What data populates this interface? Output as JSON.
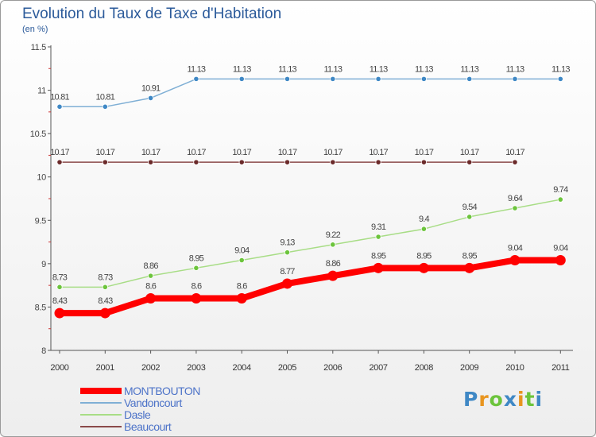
{
  "chart_data": {
    "type": "line",
    "title": "Evolution du Taux de Taxe d'Habitation",
    "subtitle": "(en %)",
    "xlabel": "",
    "ylabel": "",
    "x": [
      "2000",
      "2001",
      "2002",
      "2003",
      "2004",
      "2005",
      "2006",
      "2007",
      "2008",
      "2009",
      "2010",
      "2011"
    ],
    "ylim": [
      8,
      11.5
    ],
    "yticks": [
      {
        "v": 8,
        "label": "8"
      },
      {
        "v": 8.5,
        "label": "8.5"
      },
      {
        "v": 9,
        "label": "9"
      },
      {
        "v": 9.5,
        "label": "9.5"
      },
      {
        "v": 10,
        "label": "10"
      },
      {
        "v": 10.5,
        "label": "10.5"
      },
      {
        "v": 11,
        "label": "11"
      },
      {
        "v": 11.5,
        "label": "11.5"
      }
    ],
    "legend_position": "bottom-left",
    "series": [
      {
        "name": "MONTBOUTON",
        "color": "#ff0000",
        "marker_color": "#ff0000",
        "width": "thick",
        "values": [
          8.43,
          8.43,
          8.6,
          8.6,
          8.6,
          8.77,
          8.86,
          8.95,
          8.95,
          8.95,
          9.04,
          9.04
        ],
        "labels": [
          "8.43",
          "8.43",
          "8.6",
          "8.6",
          "8.6",
          "8.77",
          "8.86",
          "8.95",
          "8.95",
          "8.95",
          "9.04",
          "9.04"
        ]
      },
      {
        "name": "Vandoncourt",
        "color": "#7fafd5",
        "marker_color": "#3f88c5",
        "width": "thin",
        "values": [
          10.81,
          10.81,
          10.91,
          11.13,
          11.13,
          11.13,
          11.13,
          11.13,
          11.13,
          11.13,
          11.13,
          11.13
        ],
        "labels": [
          "10.81",
          "10.81",
          "10.91",
          "11.13",
          "11.13",
          "11.13",
          "11.13",
          "11.13",
          "11.13",
          "11.13",
          "11.13",
          "11.13"
        ]
      },
      {
        "name": "Dasle",
        "color": "#a8dd86",
        "marker_color": "#6cc43c",
        "width": "thin",
        "values": [
          8.73,
          8.73,
          8.86,
          8.95,
          9.04,
          9.13,
          9.22,
          9.31,
          9.4,
          9.54,
          9.64,
          9.74
        ],
        "labels": [
          "8.73",
          "8.73",
          "8.86",
          "8.95",
          "9.04",
          "9.13",
          "9.22",
          "9.31",
          "9.4",
          "9.54",
          "9.64",
          "9.74"
        ]
      },
      {
        "name": "Beaucourt",
        "color": "#8a4a4a",
        "marker_color": "#6b2a2a",
        "width": "thin",
        "values": [
          10.17,
          10.17,
          10.17,
          10.17,
          10.17,
          10.17,
          10.17,
          10.17,
          10.17,
          10.17,
          10.17,
          null
        ],
        "labels": [
          "10.17",
          "10.17",
          "10.17",
          "10.17",
          "10.17",
          "10.17",
          "10.17",
          "10.17",
          "10.17",
          "10.17",
          "10.17",
          ""
        ]
      }
    ]
  },
  "logo": {
    "letters": [
      "P",
      "r",
      "o",
      "x",
      "i",
      "t",
      "i"
    ],
    "colors": [
      "#3f88c5",
      "#e8951f",
      "#6cc43c",
      "#3f88c5",
      "#e8951f",
      "#6cc43c",
      "#3f88c5"
    ]
  }
}
